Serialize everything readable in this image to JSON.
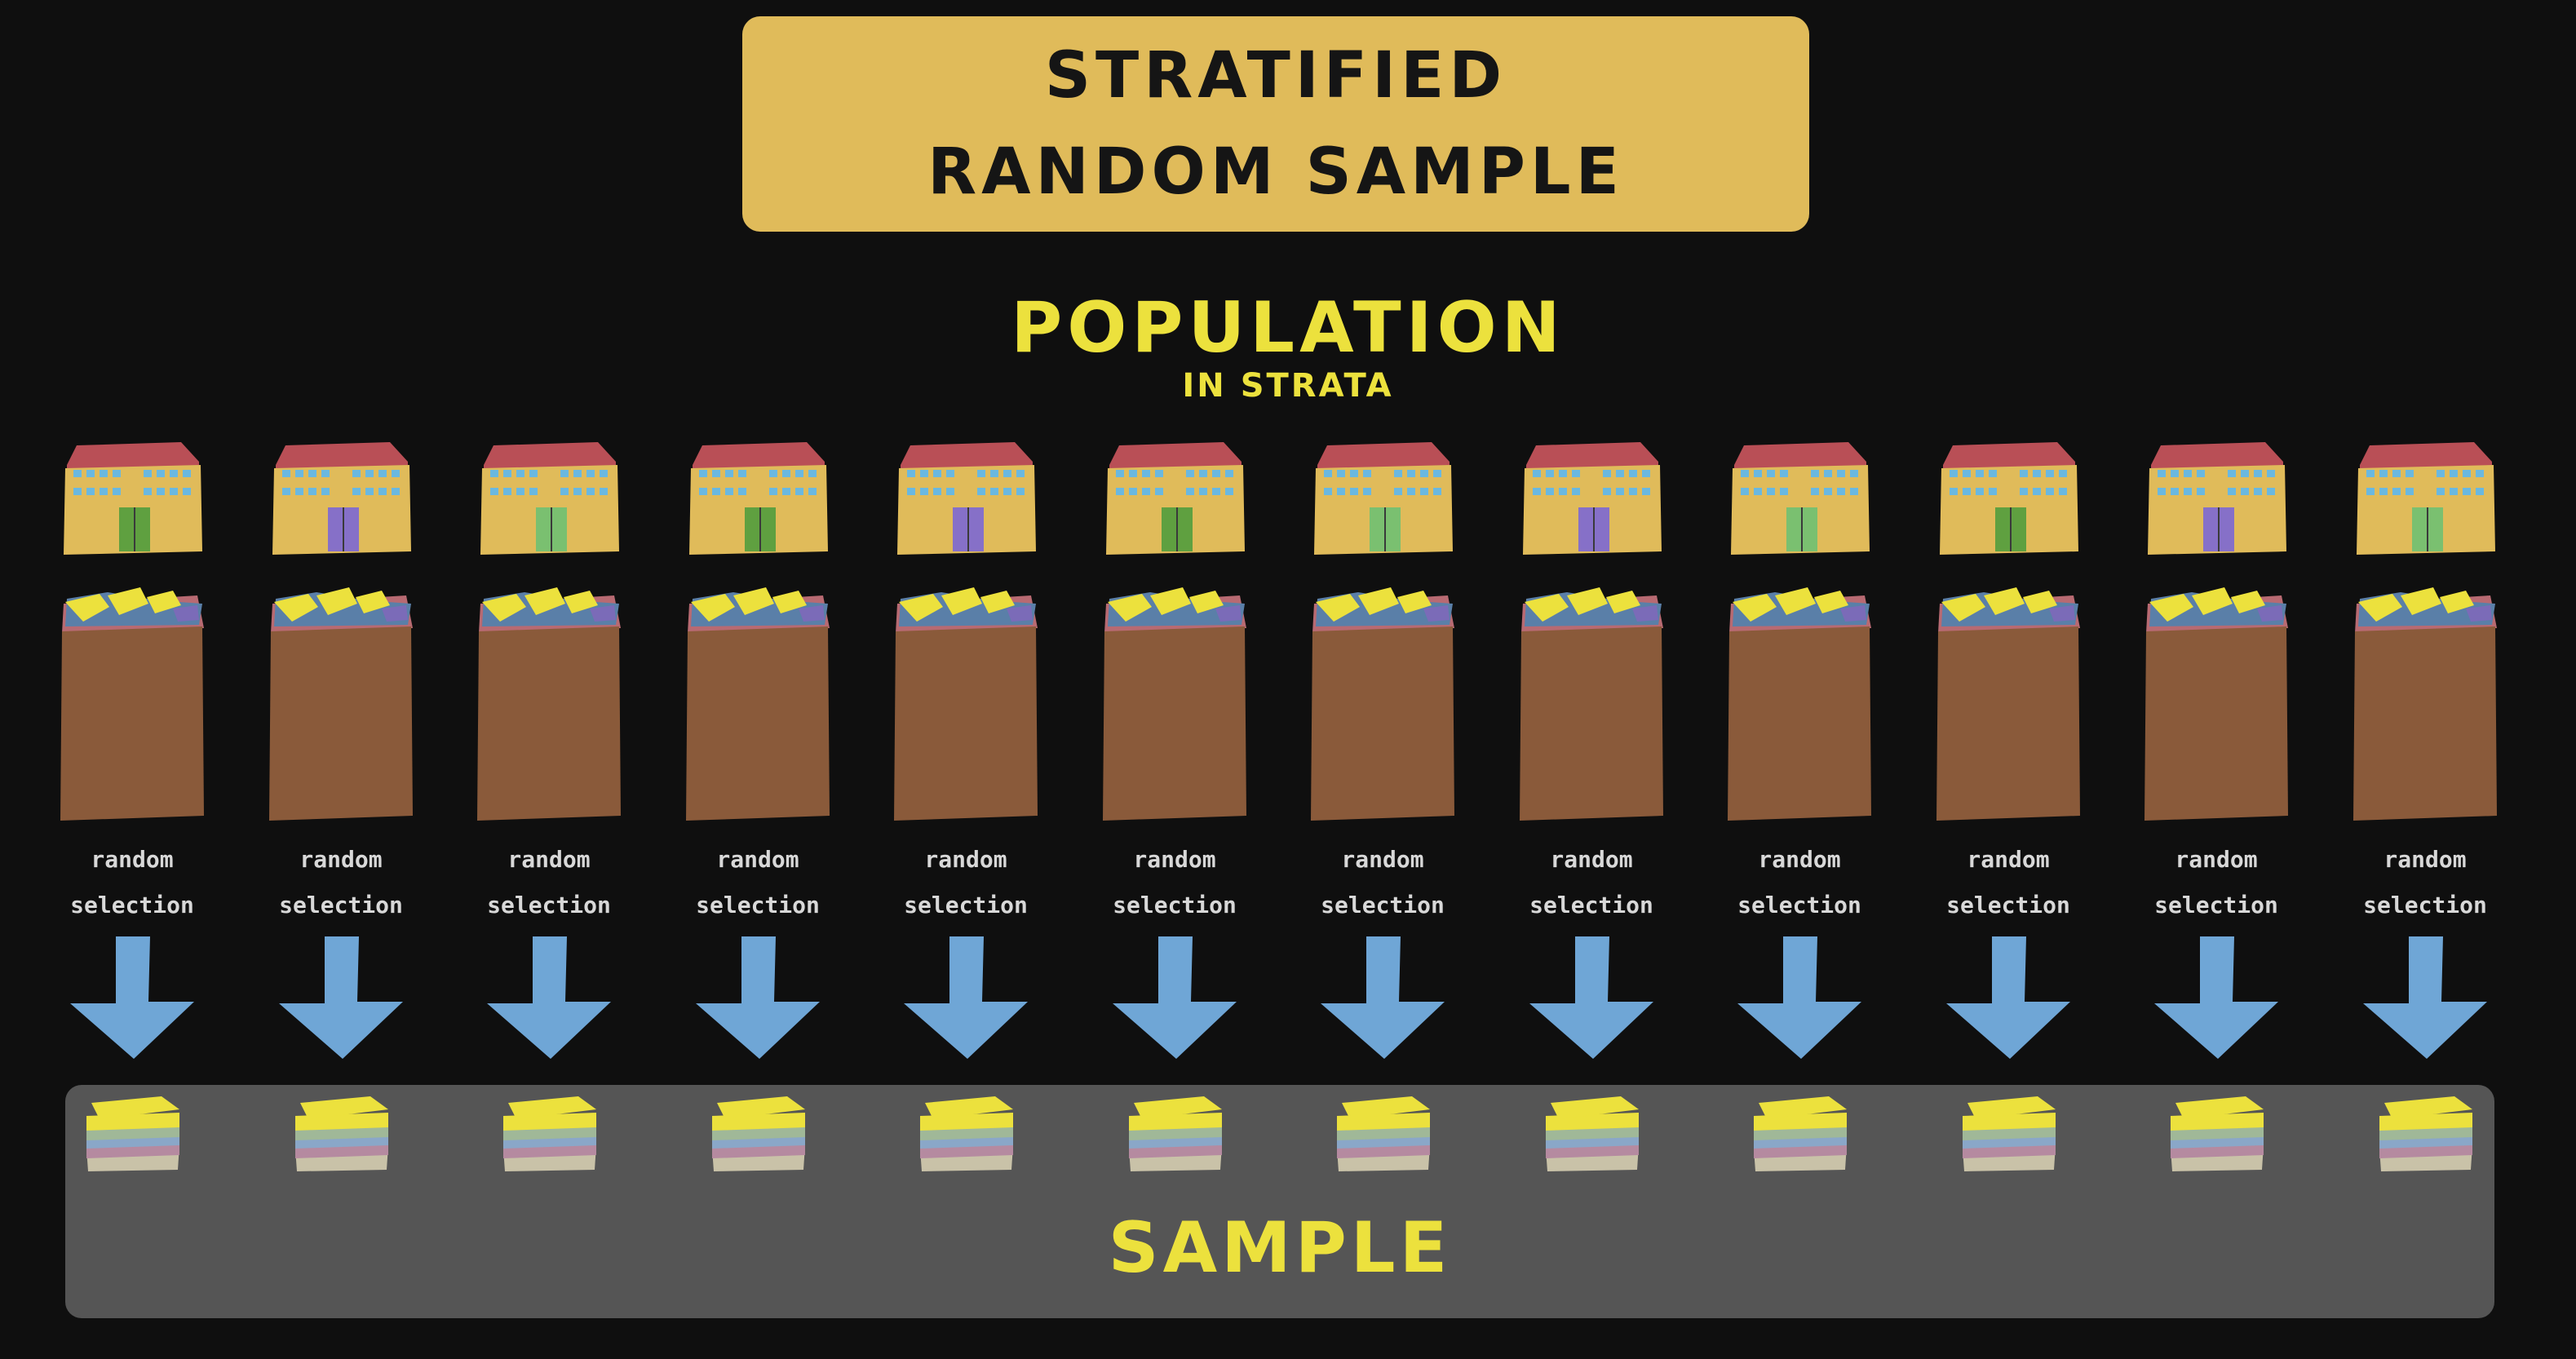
{
  "title": {
    "line1": "STRATIFIED",
    "line2": "RANDOM SAMPLE"
  },
  "population": {
    "title": "POPULATION",
    "subtitle": "IN STRATA"
  },
  "columns": [
    {
      "line1": "random",
      "line2": "selection",
      "door": "#5fa040"
    },
    {
      "line1": "random",
      "line2": "selection",
      "door": "#8670c8"
    },
    {
      "line1": "random",
      "line2": "selection",
      "door": "#7ac070"
    },
    {
      "line1": "random",
      "line2": "selection",
      "door": "#5fa040"
    },
    {
      "line1": "random",
      "line2": "selection",
      "door": "#8670c8"
    },
    {
      "line1": "random",
      "line2": "selection",
      "door": "#5fa040"
    },
    {
      "line1": "random",
      "line2": "selection",
      "door": "#7ac070"
    },
    {
      "line1": "random",
      "line2": "selection",
      "door": "#8670c8"
    },
    {
      "line1": "random",
      "line2": "selection",
      "door": "#7ac070"
    },
    {
      "line1": "random",
      "line2": "selection",
      "door": "#5fa040"
    },
    {
      "line1": "random",
      "line2": "selection",
      "door": "#8670c8"
    },
    {
      "line1": "random",
      "line2": "selection",
      "door": "#7ac070"
    }
  ],
  "sample": {
    "label": "SAMPLE"
  },
  "colors": {
    "background": "#0f0f0f",
    "title_box": "#e0bb5a",
    "accent_text": "#ece13d",
    "roof": "#b94f56",
    "building": "#e0bb5a",
    "windows": "#6ab8e0",
    "stack_body": "#8a5a3a",
    "arrow": "#6fa6d6",
    "sample_box": "#555555"
  }
}
